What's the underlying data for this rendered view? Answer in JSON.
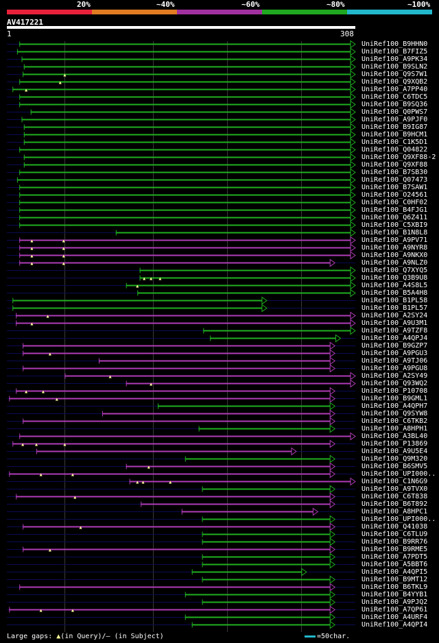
{
  "scale": {
    "labels": [
      "20%",
      "~40%",
      "~60%",
      "~80%",
      "~100%"
    ],
    "colors": [
      "#e8213a",
      "#e07b22",
      "#a0309e",
      "#1fa81f",
      "#22b8cc"
    ]
  },
  "query": {
    "name": "AV417221",
    "start": "1",
    "end": "308",
    "length": 308
  },
  "colors": {
    "green": "#1fb01f",
    "magenta": "#b03cb8",
    "grid": "#3a3a3a",
    "gap": "#0b0b55",
    "marker": "#ffff99"
  },
  "hits": [
    {
      "label": "UniRef100_B9HHN0",
      "s": 12,
      "e": 308,
      "c": "green",
      "arrow": true,
      "gap": [],
      "marks": []
    },
    {
      "label": "UniRef100_B7FIZ5",
      "s": 10,
      "e": 308,
      "c": "green",
      "arrow": true,
      "gap": [],
      "marks": []
    },
    {
      "label": "UniRef100_A9PK34",
      "s": 14,
      "e": 308,
      "c": "green",
      "arrow": true,
      "gap": [],
      "marks": []
    },
    {
      "label": "UniRef100_B9SLN2",
      "s": 16,
      "e": 308,
      "c": "green",
      "arrow": true,
      "gap": [],
      "marks": []
    },
    {
      "label": "UniRef100_Q9S7W1",
      "s": 15,
      "e": 308,
      "c": "green",
      "arrow": true,
      "gap": [],
      "marks": [
        52
      ]
    },
    {
      "label": "UniRef100_Q9XQB2",
      "s": 12,
      "e": 308,
      "c": "green",
      "arrow": true,
      "gap": [],
      "marks": [
        48
      ]
    },
    {
      "label": "UniRef100_A7PP40",
      "s": 6,
      "e": 308,
      "c": "green",
      "arrow": true,
      "gap": [],
      "marks": [
        18
      ]
    },
    {
      "label": "UniRef100_C6TDC5",
      "s": 12,
      "e": 308,
      "c": "green",
      "arrow": true,
      "gap": [],
      "marks": []
    },
    {
      "label": "UniRef100_B9SQ36",
      "s": 12,
      "e": 308,
      "c": "green",
      "arrow": true,
      "gap": [],
      "marks": []
    },
    {
      "label": "UniRef100_Q0PWS7",
      "s": 22,
      "e": 308,
      "c": "green",
      "arrow": true,
      "gap": [],
      "marks": []
    },
    {
      "label": "UniRef100_A9PJF0",
      "s": 14,
      "e": 308,
      "c": "green",
      "arrow": true,
      "gap": [],
      "marks": []
    },
    {
      "label": "UniRef100_B9IG87",
      "s": 16,
      "e": 308,
      "c": "green",
      "arrow": true,
      "gap": [],
      "marks": []
    },
    {
      "label": "UniRef100_B9HCM1",
      "s": 16,
      "e": 308,
      "c": "green",
      "arrow": true,
      "gap": [],
      "marks": []
    },
    {
      "label": "UniRef100_C1K5D1",
      "s": 16,
      "e": 308,
      "c": "green",
      "arrow": true,
      "gap": [],
      "marks": []
    },
    {
      "label": "UniRef100_Q04822",
      "s": 12,
      "e": 308,
      "c": "green",
      "arrow": true,
      "gap": [],
      "marks": []
    },
    {
      "label": "UniRef100_Q9XF88-2",
      "s": 16,
      "e": 308,
      "c": "green",
      "arrow": true,
      "gap": [],
      "marks": []
    },
    {
      "label": "UniRef100_Q9XF88",
      "s": 16,
      "e": 308,
      "c": "green",
      "arrow": true,
      "gap": [],
      "marks": []
    },
    {
      "label": "UniRef100_B7SB30",
      "s": 12,
      "e": 308,
      "c": "green",
      "arrow": true,
      "gap": [],
      "marks": []
    },
    {
      "label": "UniRef100_Q07473",
      "s": 10,
      "e": 308,
      "c": "green",
      "arrow": true,
      "gap": [],
      "marks": []
    },
    {
      "label": "UniRef100_B7SAW1",
      "s": 12,
      "e": 308,
      "c": "green",
      "arrow": true,
      "gap": [],
      "marks": []
    },
    {
      "label": "UniRef100_O24561",
      "s": 12,
      "e": 308,
      "c": "green",
      "arrow": true,
      "gap": [],
      "marks": []
    },
    {
      "label": "UniRef100_C0HF02",
      "s": 12,
      "e": 308,
      "c": "green",
      "arrow": true,
      "gap": [],
      "marks": []
    },
    {
      "label": "UniRef100_B4FJG1",
      "s": 12,
      "e": 308,
      "c": "green",
      "arrow": true,
      "gap": [],
      "marks": []
    },
    {
      "label": "UniRef100_Q6Z411",
      "s": 12,
      "e": 308,
      "c": "green",
      "arrow": true,
      "gap": [],
      "marks": []
    },
    {
      "label": "UniRef100_C5XBI9",
      "s": 12,
      "e": 308,
      "c": "green",
      "arrow": true,
      "gap": [],
      "marks": []
    },
    {
      "label": "UniRef100_B1N8L8",
      "s": 97,
      "e": 308,
      "c": "green",
      "arrow": true,
      "gap": [],
      "marks": []
    },
    {
      "label": "UniRef100_A9PV71",
      "s": 12,
      "e": 308,
      "c": "magenta",
      "arrow": true,
      "gap": [],
      "marks": [
        23,
        51
      ]
    },
    {
      "label": "UniRef100_A9NYR8",
      "s": 12,
      "e": 308,
      "c": "magenta",
      "arrow": true,
      "gap": [],
      "marks": [
        23,
        51
      ]
    },
    {
      "label": "UniRef100_A9NKX0",
      "s": 12,
      "e": 308,
      "c": "magenta",
      "arrow": true,
      "gap": [],
      "marks": [
        23,
        51
      ]
    },
    {
      "label": "UniRef100_A9NLZ0",
      "s": 12,
      "e": 290,
      "c": "magenta",
      "arrow": true,
      "gap": [],
      "marks": [
        23,
        51
      ]
    },
    {
      "label": "UniRef100_Q7XYQ5",
      "s": 118,
      "e": 308,
      "c": "green",
      "arrow": true,
      "gap": [],
      "marks": []
    },
    {
      "label": "UniRef100_Q3B9U8",
      "s": 118,
      "e": 308,
      "c": "green",
      "arrow": true,
      "gap": [],
      "marks": [
        122,
        128,
        136
      ]
    },
    {
      "label": "UniRef100_A4S8L5",
      "s": 106,
      "e": 308,
      "c": "green",
      "arrow": true,
      "gap": [],
      "marks": [
        116
      ]
    },
    {
      "label": "UniRef100_B5A4H8",
      "s": 116,
      "e": 308,
      "c": "green",
      "arrow": true,
      "gap": [],
      "marks": []
    },
    {
      "label": "UniRef100_B1PL58",
      "s": 6,
      "e": 230,
      "c": "green",
      "arrow": true,
      "gap": [],
      "marks": []
    },
    {
      "label": "UniRef100_B1PL57",
      "s": 6,
      "e": 230,
      "c": "green",
      "arrow": true,
      "gap": [],
      "marks": []
    },
    {
      "label": "UniRef100_A2SY24",
      "s": 9,
      "e": 308,
      "c": "magenta",
      "arrow": true,
      "gap": [],
      "marks": [
        37
      ]
    },
    {
      "label": "UniRef100_A9U3M1",
      "s": 9,
      "e": 308,
      "c": "magenta",
      "arrow": true,
      "gap": [],
      "marks": [
        23
      ]
    },
    {
      "label": "UniRef100_A9TZF8",
      "s": 174,
      "e": 308,
      "c": "green",
      "arrow": true,
      "gap": [],
      "marks": []
    },
    {
      "label": "UniRef100_A4QPJ4",
      "s": 180,
      "e": 295,
      "c": "green",
      "arrow": true,
      "gap": [],
      "marks": []
    },
    {
      "label": "UniRef100_B9GZP7",
      "s": 15,
      "e": 290,
      "c": "magenta",
      "arrow": true,
      "gap": [],
      "marks": []
    },
    {
      "label": "UniRef100_A9PGU3",
      "s": 15,
      "e": 290,
      "c": "magenta",
      "arrow": true,
      "gap": [],
      "marks": [
        39
      ]
    },
    {
      "label": "UniRef100_A9TJ06",
      "s": 82,
      "e": 290,
      "c": "magenta",
      "arrow": true,
      "gap": [],
      "marks": []
    },
    {
      "label": "UniRef100_A9PGU8",
      "s": 15,
      "e": 290,
      "c": "magenta",
      "arrow": true,
      "gap": [],
      "marks": []
    },
    {
      "label": "UniRef100_A2SY49",
      "s": 52,
      "e": 308,
      "c": "magenta",
      "arrow": true,
      "gap": [],
      "marks": [
        92
      ]
    },
    {
      "label": "UniRef100_Q93WQ2",
      "s": 106,
      "e": 308,
      "c": "magenta",
      "arrow": true,
      "gap": [],
      "marks": [
        128
      ]
    },
    {
      "label": "UniRef100_P10708",
      "s": 9,
      "e": 290,
      "c": "magenta",
      "arrow": true,
      "gap": [],
      "marks": [
        18,
        33
      ]
    },
    {
      "label": "UniRef100_B9GML1",
      "s": 3,
      "e": 290,
      "c": "magenta",
      "arrow": true,
      "gap": [],
      "marks": [
        45
      ]
    },
    {
      "label": "UniRef100_A4QPH7",
      "s": 134,
      "e": 290,
      "c": "green",
      "arrow": true,
      "gap": [],
      "marks": []
    },
    {
      "label": "UniRef100_Q9SYW8",
      "s": 85,
      "e": 290,
      "c": "magenta",
      "arrow": true,
      "gap": [],
      "marks": []
    },
    {
      "label": "UniRef100_C6TKB2",
      "s": 15,
      "e": 290,
      "c": "magenta",
      "arrow": true,
      "gap": [],
      "marks": []
    },
    {
      "label": "UniRef100_A8HPH1",
      "s": 170,
      "e": 290,
      "c": "green",
      "arrow": true,
      "gap": [],
      "marks": []
    },
    {
      "label": "UniRef100_A3BL40",
      "s": 12,
      "e": 308,
      "c": "magenta",
      "arrow": true,
      "gap": [],
      "marks": []
    },
    {
      "label": "UniRef100_P13869",
      "s": 6,
      "e": 290,
      "c": "magenta",
      "arrow": true,
      "gap": [],
      "marks": [
        15,
        27,
        52
      ]
    },
    {
      "label": "UniRef100_A9U5E4",
      "s": 27,
      "e": 256,
      "c": "magenta",
      "arrow": true,
      "gap": [],
      "marks": []
    },
    {
      "label": "UniRef100_Q9M320",
      "s": 158,
      "e": 290,
      "c": "green",
      "arrow": true,
      "gap": [],
      "marks": []
    },
    {
      "label": "UniRef100_B6SMV5",
      "s": 106,
      "e": 290,
      "c": "magenta",
      "arrow": true,
      "gap": [],
      "marks": [
        126
      ]
    },
    {
      "label": "UniRef100_UPI000..",
      "s": 3,
      "e": 290,
      "c": "magenta",
      "arrow": true,
      "gap": [],
      "marks": [
        31,
        59
      ]
    },
    {
      "label": "UniRef100_C1N6G9",
      "s": 109,
      "e": 308,
      "c": "magenta",
      "arrow": true,
      "gap": [],
      "marks": [
        116,
        121,
        145
      ]
    },
    {
      "label": "UniRef100_A9TVX0",
      "s": 173,
      "e": 290,
      "c": "green",
      "arrow": true,
      "gap": [],
      "marks": []
    },
    {
      "label": "UniRef100_C6T838",
      "s": 9,
      "e": 290,
      "c": "magenta",
      "arrow": true,
      "gap": [],
      "marks": [
        61
      ]
    },
    {
      "label": "UniRef100_B6T892",
      "s": 119,
      "e": 290,
      "c": "magenta",
      "arrow": true,
      "gap": [],
      "marks": []
    },
    {
      "label": "UniRef100_A8HPC1",
      "s": 155,
      "e": 275,
      "c": "magenta",
      "arrow": true,
      "gap": [],
      "marks": []
    },
    {
      "label": "UniRef100_UPI000..",
      "s": 173,
      "e": 290,
      "c": "green",
      "arrow": true,
      "gap": [],
      "marks": []
    },
    {
      "label": "UniRef100_Q41038",
      "s": 15,
      "e": 290,
      "c": "magenta",
      "arrow": true,
      "gap": [],
      "marks": [
        66
      ]
    },
    {
      "label": "UniRef100_C6TLU9",
      "s": 173,
      "e": 290,
      "c": "green",
      "arrow": true,
      "gap": [],
      "marks": []
    },
    {
      "label": "UniRef100_B9RR76",
      "s": 173,
      "e": 290,
      "c": "green",
      "arrow": true,
      "gap": [],
      "marks": []
    },
    {
      "label": "UniRef100_B9RME5",
      "s": 15,
      "e": 290,
      "c": "magenta",
      "arrow": true,
      "gap": [],
      "marks": [
        39
      ]
    },
    {
      "label": "UniRef100_A7PDT5",
      "s": 173,
      "e": 290,
      "c": "green",
      "arrow": true,
      "gap": [],
      "marks": []
    },
    {
      "label": "UniRef100_A5BBT6",
      "s": 173,
      "e": 290,
      "c": "green",
      "arrow": true,
      "gap": [],
      "marks": []
    },
    {
      "label": "UniRef100_A4QPI5",
      "s": 164,
      "e": 265,
      "c": "green",
      "arrow": true,
      "gap": [],
      "marks": []
    },
    {
      "label": "UniRef100_B9MT12",
      "s": 173,
      "e": 290,
      "c": "green",
      "arrow": true,
      "gap": [],
      "marks": []
    },
    {
      "label": "UniRef100_B6TKL9",
      "s": 12,
      "e": 290,
      "c": "magenta",
      "arrow": true,
      "gap": [],
      "marks": []
    },
    {
      "label": "UniRef100_B4YYB1",
      "s": 158,
      "e": 290,
      "c": "green",
      "arrow": true,
      "gap": [],
      "marks": []
    },
    {
      "label": "UniRef100_A9PJQ2",
      "s": 173,
      "e": 290,
      "c": "green",
      "arrow": true,
      "gap": [],
      "marks": []
    },
    {
      "label": "UniRef100_A7QP61",
      "s": 3,
      "e": 290,
      "c": "magenta",
      "arrow": true,
      "gap": [],
      "marks": [
        31,
        59
      ]
    },
    {
      "label": "UniRef100_A4URF4",
      "s": 158,
      "e": 290,
      "c": "green",
      "arrow": true,
      "gap": [],
      "marks": []
    },
    {
      "label": "UniRef100_A4QPI4",
      "s": 164,
      "e": 290,
      "c": "green",
      "arrow": true,
      "gap": [],
      "marks": []
    }
  ],
  "legend": {
    "gaps_label": "Large gaps:",
    "query_marker": "▲",
    "query_text": "(in Query)",
    "subject_text": "/– (in Subject)",
    "scale_text": "=50char."
  }
}
